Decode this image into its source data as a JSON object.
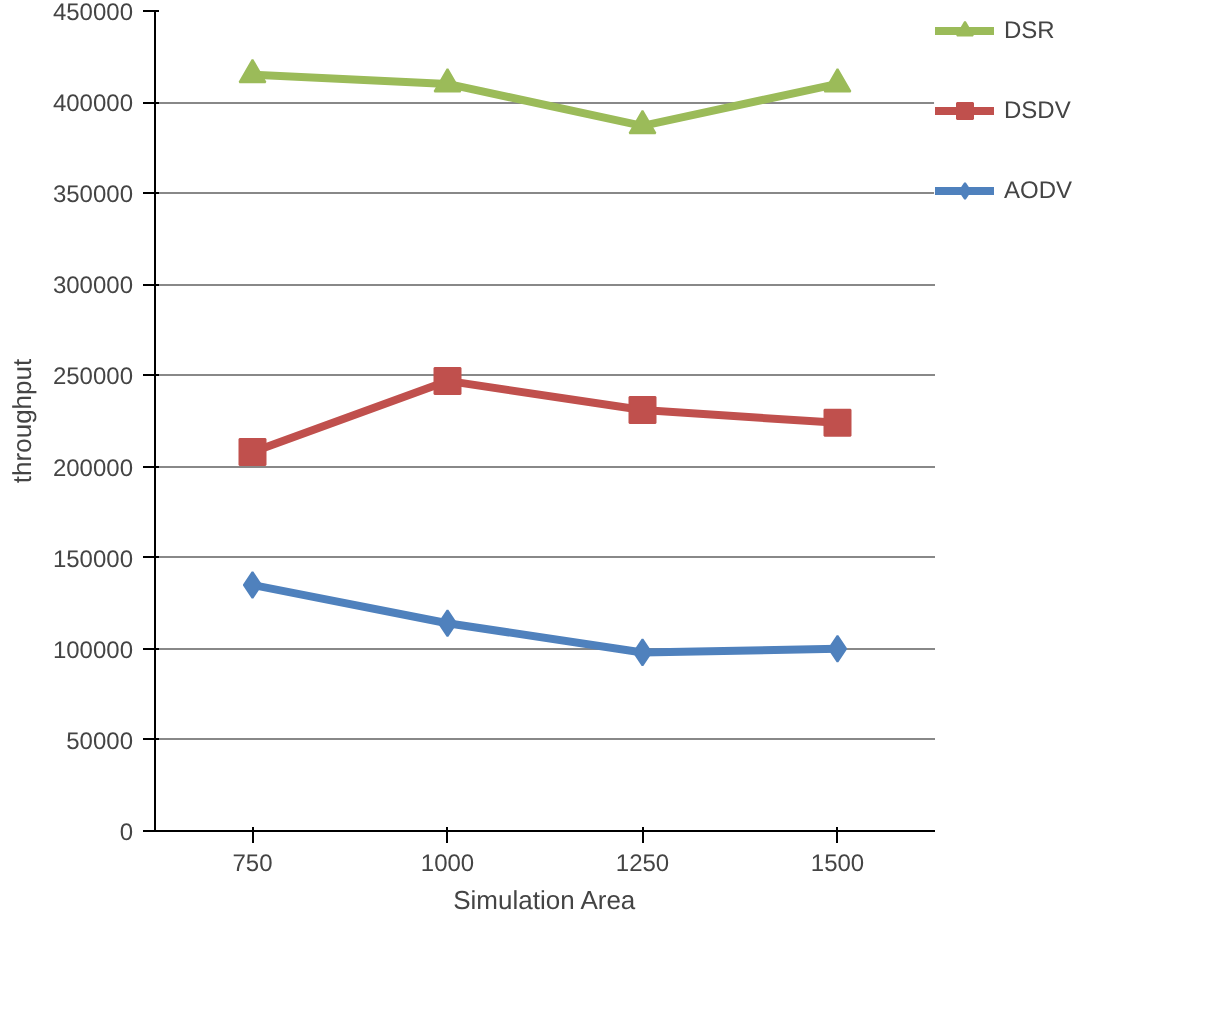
{
  "chart_data": {
    "type": "line",
    "xlabel": "Simulation Area",
    "ylabel": "throughput",
    "categories": [
      "750",
      "1000",
      "1250",
      "1500"
    ],
    "ylim": [
      0,
      450000
    ],
    "yticks": [
      0,
      50000,
      100000,
      150000,
      200000,
      250000,
      300000,
      350000,
      400000,
      450000
    ],
    "grid": "y",
    "legend": "right",
    "line_style": "solid",
    "series": [
      {
        "name": "DSR",
        "color": "#9bbb59",
        "marker": "triangle",
        "values": [
          415000,
          410000,
          387000,
          410000
        ]
      },
      {
        "name": "DSDV",
        "color": "#c0504d",
        "marker": "square",
        "values": [
          208000,
          247000,
          231000,
          224000
        ]
      },
      {
        "name": "AODV",
        "color": "#4f81bd",
        "marker": "diamond",
        "values": [
          135000,
          114000,
          98000,
          100000
        ]
      }
    ]
  }
}
